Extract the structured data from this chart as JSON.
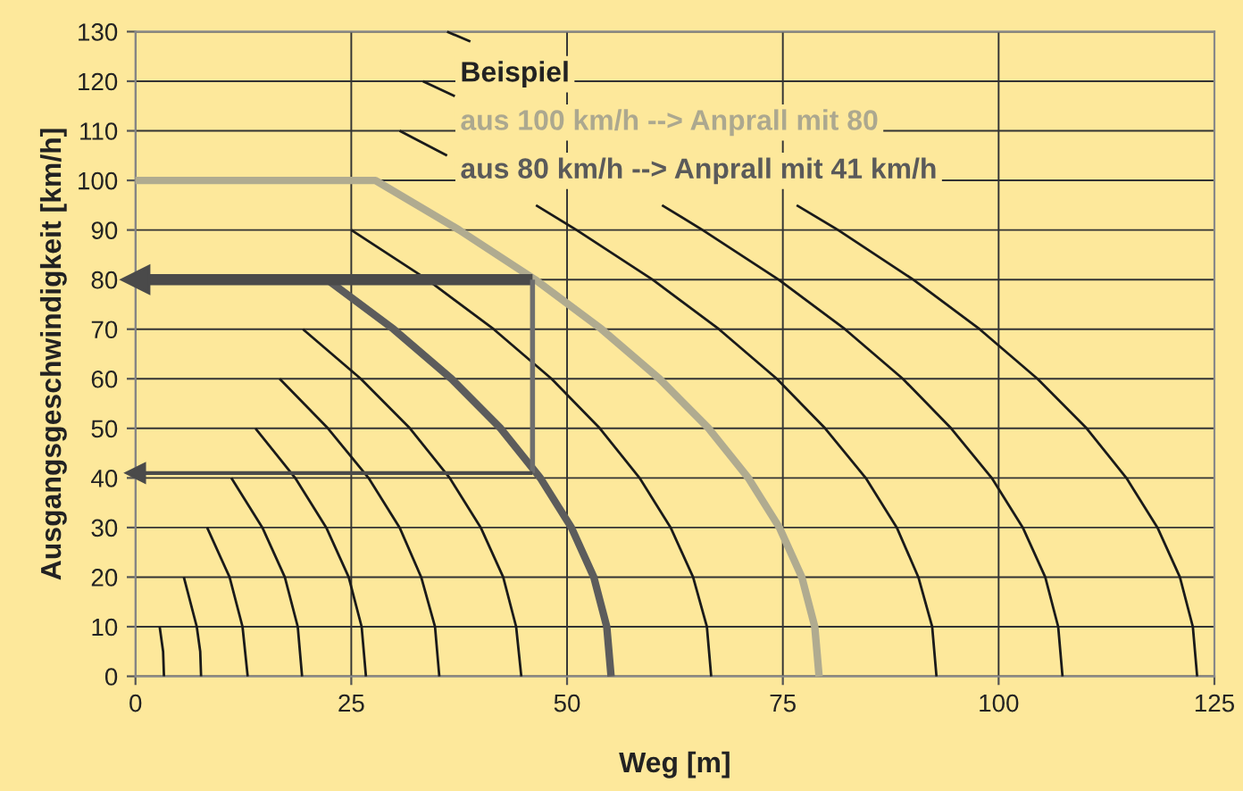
{
  "chart_data": {
    "type": "line",
    "xlabel": "Weg [m]",
    "ylabel": "Ausgangsgeschwindigkeit [km/h]",
    "xlim": [
      0,
      125
    ],
    "ylim": [
      0,
      130
    ],
    "xticks": [
      0,
      25,
      50,
      75,
      100,
      125
    ],
    "yticks": [
      0,
      10,
      20,
      30,
      40,
      50,
      60,
      70,
      80,
      90,
      100,
      110,
      120,
      130
    ],
    "grid": true,
    "annotations": [
      "Beispiel",
      "aus 100 km/h --> Anprall mit 80",
      "aus 80 km/h --> Anprall mit 41 km/h"
    ],
    "series": [
      {
        "color": "#1a1a1a",
        "x": [
          2.8,
          3.2,
          3.3
        ],
        "values": [
          10,
          5,
          0
        ]
      },
      {
        "color": "#1a1a1a",
        "x": [
          5.6,
          7.1,
          7.5,
          7.6
        ],
        "values": [
          20,
          10,
          5,
          0
        ]
      },
      {
        "color": "#1a1a1a",
        "x": [
          8.3,
          10.9,
          12.4,
          13.0
        ],
        "values": [
          30,
          20,
          10,
          0
        ]
      },
      {
        "color": "#1a1a1a",
        "x": [
          11.1,
          14.7,
          17.3,
          18.8,
          19.3
        ],
        "values": [
          40,
          30,
          20,
          10,
          0
        ]
      },
      {
        "color": "#1a1a1a",
        "x": [
          13.9,
          18.5,
          22.1,
          24.7,
          26.2,
          26.7
        ],
        "values": [
          50,
          40,
          30,
          20,
          10,
          0
        ]
      },
      {
        "color": "#1a1a1a",
        "x": [
          16.7,
          22.3,
          27.0,
          30.6,
          33.1,
          34.7,
          35.2
        ],
        "values": [
          60,
          50,
          40,
          30,
          20,
          10,
          0
        ]
      },
      {
        "color": "#1a1a1a",
        "x": [
          19.4,
          26.1,
          31.8,
          36.4,
          40.0,
          42.6,
          44.1,
          44.7
        ],
        "values": [
          70,
          60,
          50,
          40,
          30,
          20,
          10,
          0
        ]
      },
      {
        "color": "#5c5c5c",
        "x": [
          22.2,
          29.9,
          36.6,
          42.3,
          46.9,
          50.5,
          53.1,
          54.6,
          55.1
        ],
        "values": [
          80,
          70,
          60,
          50,
          40,
          30,
          20,
          10,
          0
        ]
      },
      {
        "color": "#1a1a1a",
        "x": [
          25.0,
          33.8,
          41.5,
          48.2,
          53.8,
          58.4,
          62.0,
          64.6,
          66.2,
          66.7
        ],
        "values": [
          90,
          80,
          70,
          60,
          50,
          40,
          30,
          20,
          10,
          0
        ]
      },
      {
        "color": "#b0ab90",
        "x": [
          0,
          27.8,
          37.5,
          46.3,
          54.0,
          60.7,
          66.4,
          71.0,
          74.6,
          77.2,
          78.7,
          79.2
        ],
        "values": [
          100,
          100,
          90,
          80,
          70,
          60,
          50,
          40,
          30,
          20,
          10,
          0
        ]
      },
      {
        "color": "#1a1a1a",
        "x": [
          30.6,
          36.1,
          null,
          46.4,
          51.1,
          59.9,
          67.6,
          74.3,
          79.9,
          84.6,
          88.2,
          90.7,
          92.3,
          92.8
        ],
        "values": [
          110,
          105,
          null,
          95,
          90,
          80,
          70,
          60,
          50,
          40,
          30,
          20,
          10,
          0
        ]
      },
      {
        "color": "#1a1a1a",
        "x": [
          33.3,
          37.0,
          null,
          61.0,
          65.7,
          74.5,
          82.2,
          88.9,
          94.5,
          99.2,
          102.8,
          105.4,
          106.9,
          107.4
        ],
        "values": [
          120,
          117,
          null,
          95,
          90,
          80,
          70,
          60,
          50,
          40,
          30,
          20,
          10,
          0
        ]
      },
      {
        "color": "#1a1a1a",
        "x": [
          36.1,
          38.8,
          null,
          76.6,
          81.4,
          90.1,
          97.8,
          104.5,
          110.2,
          114.8,
          118.4,
          121.0,
          122.5,
          123.0
        ],
        "values": [
          130,
          128,
          null,
          95,
          90,
          80,
          70,
          60,
          50,
          40,
          30,
          20,
          10,
          0
        ]
      },
      {
        "color": "#4a4a4a",
        "x": [
          46,
          0
        ],
        "values": [
          80,
          80
        ],
        "marker": "triangle"
      },
      {
        "color": "#6e6e6e",
        "x": [
          46,
          46
        ],
        "values": [
          80,
          41
        ]
      },
      {
        "color": "#4a4a4a",
        "x": [
          46,
          0
        ],
        "values": [
          41,
          41
        ],
        "marker": "triangle"
      }
    ]
  }
}
